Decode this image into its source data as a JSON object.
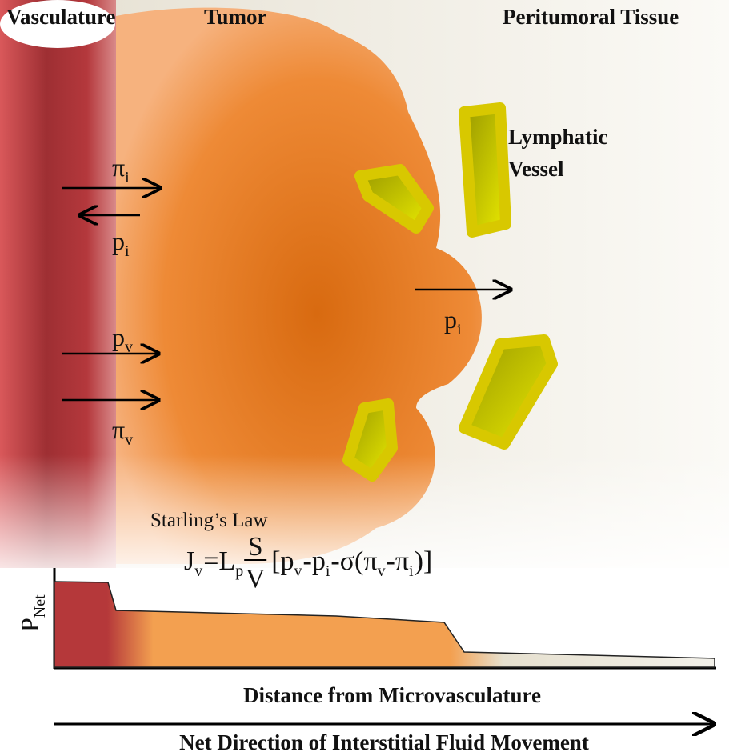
{
  "headers": {
    "vasculature": "Vasculature",
    "tumor": "Tumor",
    "peritumoral": "Peritumoral Tissue"
  },
  "lymphatic_label": [
    "Lymphatic",
    "Vessel"
  ],
  "arrows": [
    {
      "symbol": "π",
      "subscript": "i"
    },
    {
      "symbol": "p",
      "subscript": "i"
    },
    {
      "symbol": "p",
      "subscript": "v"
    },
    {
      "symbol": "π",
      "subscript": "v"
    },
    {
      "symbol": "p",
      "subscript": "i"
    }
  ],
  "law": {
    "title": "Starling’s Law",
    "equation": [
      {
        "base": "J",
        "subscript": "v"
      },
      {
        "base": "=L",
        "subscript": "p"
      },
      {
        "numerator": "S",
        "denominator": "V"
      },
      {
        "base": "[p",
        "subscript": "v"
      },
      {
        "base": "-p",
        "subscript": "i"
      },
      {
        "base": "-σ(π",
        "subscript": "v"
      },
      {
        "base": "-π",
        "subscript": "i"
      },
      {
        "base": ")]"
      }
    ]
  },
  "graph": {
    "y_label": {
      "base": "P",
      "subscript": "Net"
    },
    "x_label": "Distance from Microvasculature"
  },
  "footer": "Net Direction of Interstitial Fluid Movement"
}
